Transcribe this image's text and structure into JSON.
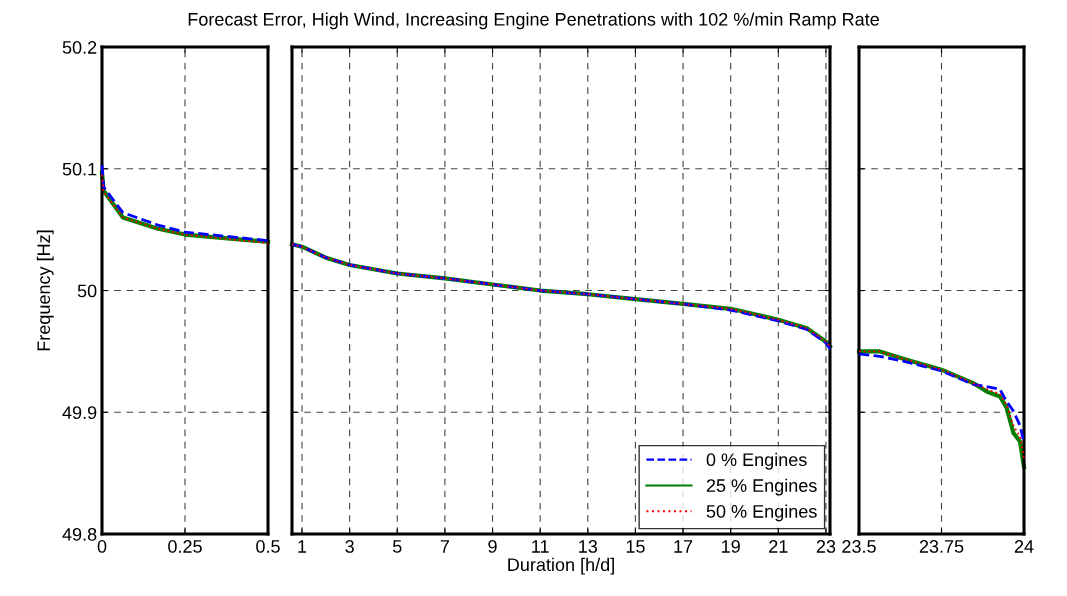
{
  "chart_data": [
    {
      "type": "line",
      "title": "Forecast Error, High Wind, Increasing Engine Penetrations with 102 %/min Ramp Rate",
      "ylabel": "Frequency [Hz]",
      "xlim": [
        0,
        0.5
      ],
      "xticks": [
        0,
        0.25,
        0.5
      ],
      "ylim": [
        49.8,
        50.2
      ],
      "yticks": [
        49.8,
        49.9,
        50,
        50.1,
        50.2
      ],
      "grid": true,
      "legend": false,
      "series": [
        {
          "color": "#0000ff",
          "line_style": "dashed",
          "x": [
            0,
            0.005,
            0.063,
            0.166,
            0.25,
            0.5
          ],
          "values": [
            50.103,
            50.085,
            50.064,
            50.054,
            50.048,
            50.041
          ]
        },
        {
          "color": "#007f00",
          "line_style": "solid",
          "x": [
            0,
            0.005,
            0.063,
            0.166,
            0.25,
            0.5
          ],
          "values": [
            50.097,
            50.082,
            50.06,
            50.051,
            50.046,
            50.04
          ]
        },
        {
          "color": "#ff0000",
          "line_style": "dotted",
          "x": [
            0,
            0.005,
            0.063,
            0.166,
            0.25,
            0.5
          ],
          "values": [
            50.095,
            50.081,
            50.06,
            50.051,
            50.046,
            50.039
          ]
        }
      ]
    },
    {
      "type": "line",
      "xlabel": "Duration [h/d]",
      "xlim": [
        0.58,
        23.17
      ],
      "xticks": [
        1,
        3,
        5,
        7,
        9,
        11,
        13,
        15,
        17,
        19,
        21,
        23
      ],
      "ylim": [
        49.8,
        50.2
      ],
      "yticks": [
        49.8,
        49.9,
        50,
        50.1,
        50.2
      ],
      "grid": true,
      "legend": "bottom right",
      "tick_labels": "x",
      "series": [
        {
          "name": "0 % Engines",
          "color": "#0000ff",
          "line_style": "dashed",
          "x": [
            0.58,
            1,
            2,
            3,
            5,
            7,
            9,
            11,
            13,
            15,
            17,
            19,
            21,
            22.2,
            23,
            23.17
          ],
          "values": [
            50.038,
            50.036,
            50.027,
            50.021,
            50.014,
            50.01,
            50.005,
            50.0,
            49.997,
            49.993,
            49.989,
            49.984,
            49.975,
            49.968,
            49.957,
            49.952
          ]
        },
        {
          "name": "25 % Engines",
          "color": "#007f00",
          "line_style": "solid",
          "x": [
            0.58,
            1,
            2,
            3,
            5,
            7,
            9,
            11,
            13,
            15,
            17,
            19,
            21,
            22.2,
            23,
            23.17
          ],
          "values": [
            50.038,
            50.036,
            50.027,
            50.021,
            50.014,
            50.01,
            50.005,
            50.0,
            49.997,
            49.993,
            49.989,
            49.985,
            49.976,
            49.969,
            49.958,
            49.954
          ]
        },
        {
          "name": "50 % Engines",
          "color": "#ff0000",
          "line_style": "dotted",
          "x": [
            0.58,
            1,
            2,
            3,
            5,
            7,
            9,
            11,
            13,
            15,
            17,
            19,
            21,
            22.2,
            23,
            23.17
          ],
          "values": [
            50.038,
            50.036,
            50.027,
            50.021,
            50.014,
            50.01,
            50.005,
            50.0,
            49.997,
            49.993,
            49.989,
            49.985,
            49.976,
            49.969,
            49.958,
            49.954
          ]
        }
      ]
    },
    {
      "type": "line",
      "xlim": [
        23.5,
        24
      ],
      "xticks": [
        23.5,
        23.75,
        24
      ],
      "ylim": [
        49.8,
        50.2
      ],
      "yticks": [
        49.8,
        49.9,
        50,
        50.1,
        50.2
      ],
      "grid": true,
      "legend": false,
      "tick_labels": "x",
      "series": [
        {
          "color": "#0000ff",
          "line_style": "dashed",
          "x": [
            23.5,
            23.563,
            23.634,
            23.75,
            23.846,
            23.887,
            23.927,
            23.947,
            23.968,
            23.988,
            24
          ],
          "values": [
            49.948,
            49.946,
            49.942,
            49.934,
            49.923,
            49.921,
            49.919,
            49.909,
            49.901,
            49.889,
            49.875
          ]
        },
        {
          "color": "#007f00",
          "line_style": "solid",
          "x": [
            23.5,
            23.563,
            23.634,
            23.75,
            23.846,
            23.887,
            23.927,
            23.947,
            23.968,
            23.988,
            24
          ],
          "values": [
            49.95,
            49.95,
            49.944,
            49.935,
            49.924,
            49.917,
            49.913,
            49.904,
            49.883,
            49.876,
            49.855
          ]
        },
        {
          "color": "#ff0000",
          "line_style": "dotted",
          "x": [
            23.5,
            23.563,
            23.634,
            23.75,
            23.846,
            23.887,
            23.927,
            23.947,
            23.968,
            23.988,
            24
          ],
          "values": [
            49.95,
            49.95,
            49.944,
            49.935,
            49.924,
            49.919,
            49.915,
            49.906,
            49.889,
            49.88,
            49.862
          ]
        }
      ]
    }
  ]
}
